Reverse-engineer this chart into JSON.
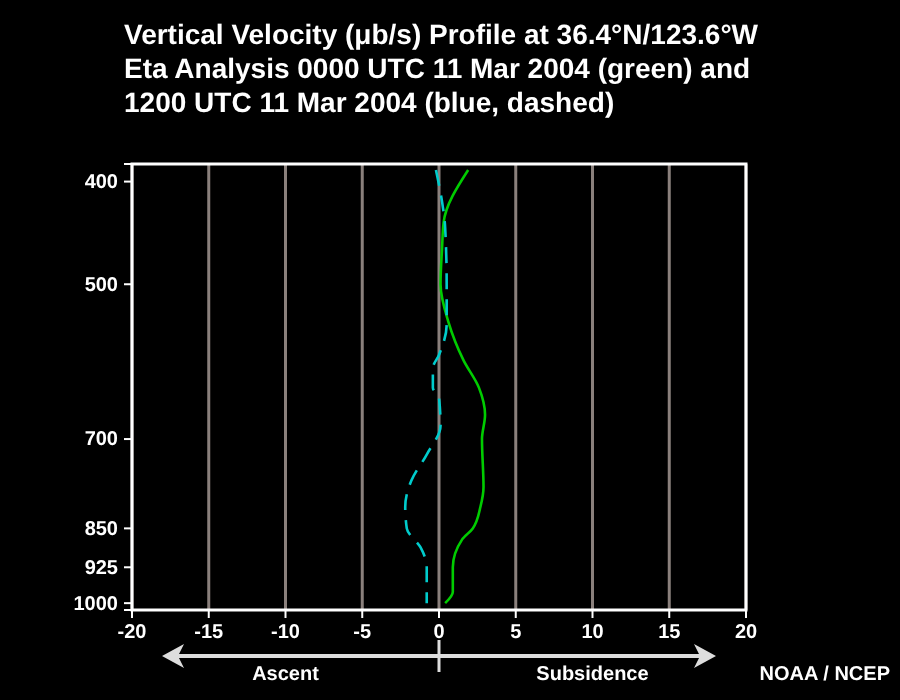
{
  "chart_data": {
    "type": "line",
    "title": "Vertical Velocity (μb/s) Profile at 36.4°N/123.6°W\nEta Analysis 0000 UTC  11 Mar 2004 (green) and\n1200 UTC  11 Mar 2004 (blue, dashed)",
    "xlim": [
      -20,
      20
    ],
    "xticks": [
      -20,
      -15,
      -10,
      -5,
      0,
      5,
      10,
      15,
      20
    ],
    "ylim": [
      1015,
      385
    ],
    "yticks": [
      400,
      500,
      700,
      850,
      925,
      1000
    ],
    "log": "y",
    "grid": "x",
    "series": [
      {
        "color": "#00cc00",
        "line_style": "solid",
        "x": [
          1.9,
          0.3,
          0.2,
          0.1,
          0.6,
          1.6,
          2.6,
          3.0,
          2.8,
          2.9,
          2.7,
          2.2,
          1.5,
          0.9,
          0.9,
          0.4
        ],
        "values": [
          390,
          437,
          462,
          500,
          542,
          590,
          626,
          664,
          700,
          777,
          811,
          850,
          871,
          925,
          976,
          1000
        ]
      },
      {
        "color": "#00cccc",
        "line_style": "dashed",
        "x": [
          -0.2,
          0.2,
          0.4,
          0.5,
          0.5,
          0,
          -0.4,
          -0.4,
          0,
          0.1,
          -0.8,
          -1.8,
          -2.2,
          -2.1,
          -1.2,
          -0.8,
          -0.8
        ],
        "values": [
          390,
          418,
          442,
          500,
          546,
          583,
          600,
          626,
          640,
          680,
          724,
          766,
          811,
          850,
          886,
          924,
          1000
        ]
      }
    ],
    "annotations": [
      "Ascent",
      "Subsidence",
      "NOAA / NCEP"
    ]
  }
}
